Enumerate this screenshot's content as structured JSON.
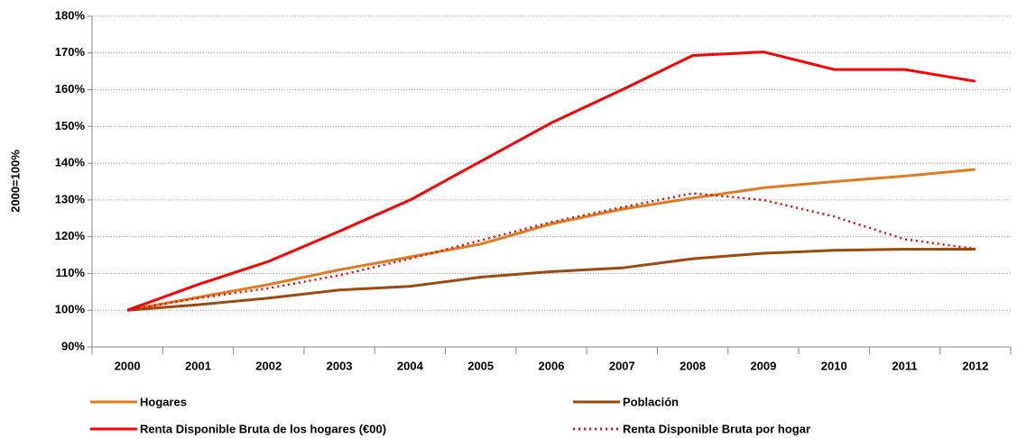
{
  "chart_data": {
    "type": "line",
    "ylabel": "2000=100%",
    "categories": [
      "2000",
      "2001",
      "2002",
      "2003",
      "2004",
      "2005",
      "2006",
      "2007",
      "2008",
      "2009",
      "2010",
      "2011",
      "2012"
    ],
    "series": [
      {
        "name": "Hogares",
        "color": "#e07b20",
        "style": "solid",
        "values": [
          100,
          103.5,
          107,
          111,
          114.5,
          118,
          123.5,
          127.5,
          130.5,
          133.3,
          135,
          136.5,
          138.3
        ]
      },
      {
        "name": "Población",
        "color": "#9c4a0e",
        "style": "solid",
        "values": [
          100,
          101.5,
          103.3,
          105.5,
          106.5,
          109,
          110.5,
          111.5,
          114,
          115.5,
          116.3,
          116.6,
          116.6
        ]
      },
      {
        "name": "Renta Disponible Bruta de los hogares (€00)",
        "color": "#ff0000",
        "style": "solid",
        "values": [
          100,
          107,
          113.3,
          121.5,
          130,
          140.5,
          151,
          160,
          169.3,
          170.3,
          165.5,
          165.5,
          162.3
        ]
      },
      {
        "name": "Renta Disponible Bruta por hogar",
        "color": "#ff0000",
        "style": "dotted",
        "values": [
          100,
          103.3,
          106,
          109.5,
          114,
          119,
          124,
          128,
          131.8,
          130,
          125.5,
          119.3,
          116.7
        ]
      }
    ],
    "ylim": [
      90,
      180
    ],
    "yticks": [
      {
        "value": 90,
        "label": "90%"
      },
      {
        "value": 100,
        "label": "100%"
      },
      {
        "value": 110,
        "label": "110%"
      },
      {
        "value": 120,
        "label": "120%"
      },
      {
        "value": 130,
        "label": "130%"
      },
      {
        "value": 140,
        "label": "140%"
      },
      {
        "value": 150,
        "label": "150%"
      },
      {
        "value": 160,
        "label": "160%"
      },
      {
        "value": 170,
        "label": "170%"
      },
      {
        "value": 180,
        "label": "180%"
      }
    ],
    "grid": true,
    "legend": "bottom"
  }
}
